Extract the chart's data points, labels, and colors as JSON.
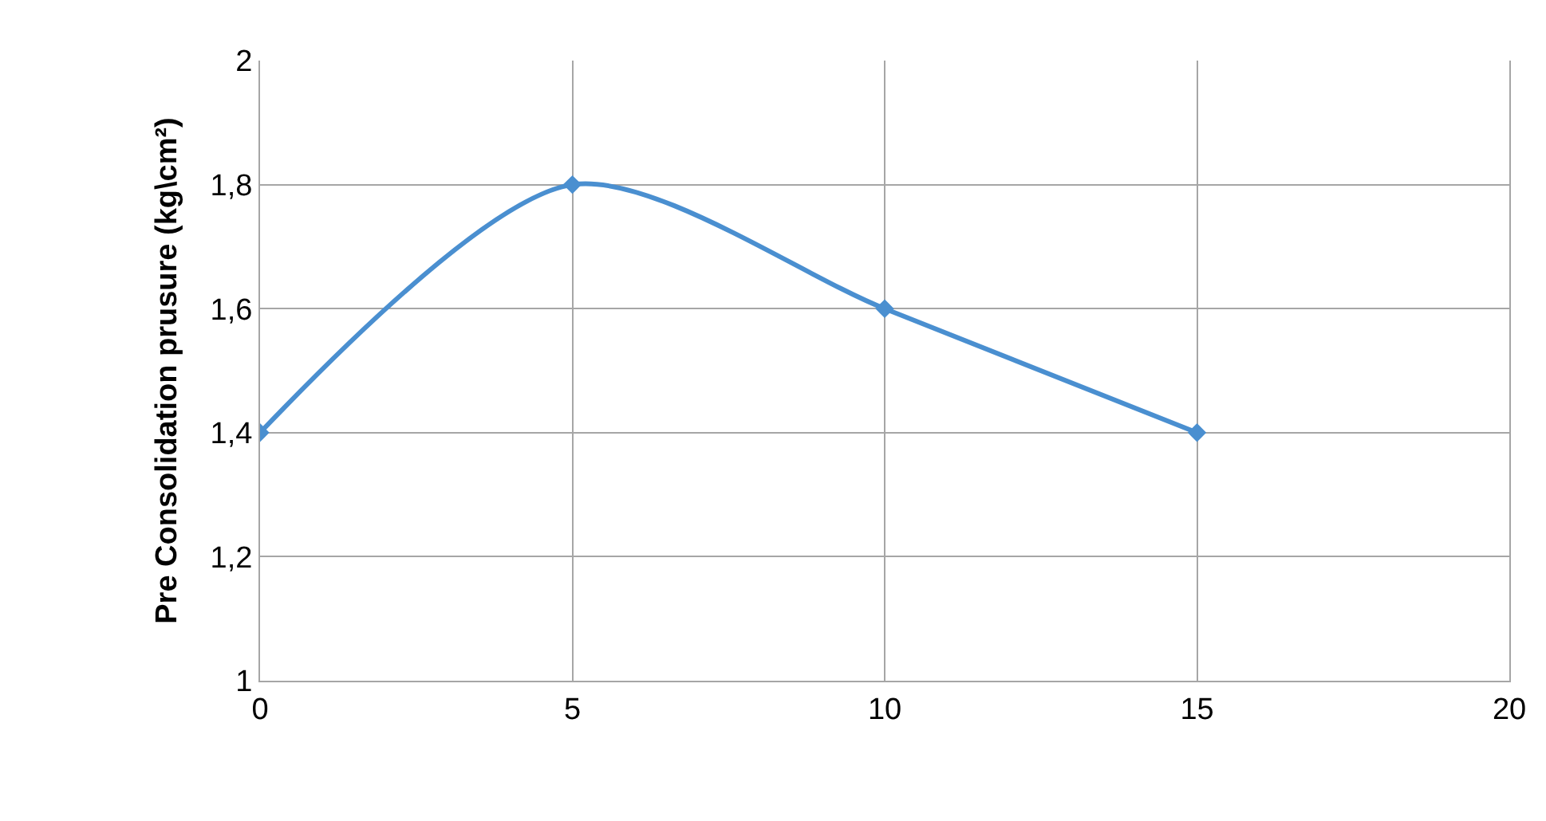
{
  "chart_data": {
    "type": "line",
    "ylabel": "Pre Consolidation prusure (kg\\cm²)",
    "x": [
      0,
      5,
      10,
      15
    ],
    "series": [
      {
        "color": "#4a8fd0",
        "values": [
          1.4,
          1.8,
          1.6,
          1.4
        ]
      }
    ],
    "xlim": [
      0,
      20
    ],
    "xticks": [
      0,
      5,
      10,
      15,
      20
    ],
    "ylim": [
      1,
      2
    ],
    "yticks": [
      {
        "value": 1,
        "label": "1"
      },
      {
        "value": 1.2,
        "label": "1,2"
      },
      {
        "value": 1.4,
        "label": "1,4"
      },
      {
        "value": 1.6,
        "label": "1,6"
      },
      {
        "value": 1.8,
        "label": "1,8"
      },
      {
        "value": 2,
        "label": "2"
      }
    ],
    "grid": true,
    "legend": false,
    "marker": "diamond",
    "line_style": "solid"
  }
}
